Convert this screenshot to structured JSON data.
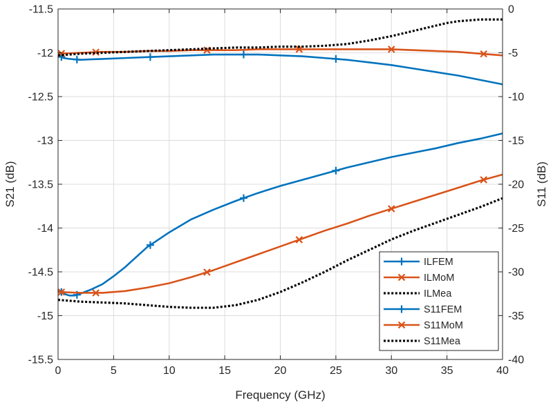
{
  "chart_data": {
    "type": "line",
    "xlabel": "Frequency (GHz)",
    "ylabel_left": "S21 (dB)",
    "ylabel_right": "S11 (dB)",
    "xlim": [
      0,
      40
    ],
    "ylim_left": [
      -15.5,
      -11.5
    ],
    "ylim_right": [
      -40,
      0
    ],
    "xticks": [
      "0",
      "5",
      "10",
      "15",
      "20",
      "25",
      "30",
      "35",
      "40"
    ],
    "yticks_left": [
      "-11.5",
      "-12",
      "-12.5",
      "-13",
      "-13.5",
      "-14",
      "-14.5",
      "-15",
      "-15.5"
    ],
    "yticks_right": [
      "0",
      "-5",
      "-10",
      "-15",
      "-20",
      "-25",
      "-30",
      "-35",
      "-40"
    ],
    "grid": true,
    "legend_position": "bottom-right",
    "colors": {
      "fem": "#0072BD",
      "mom": "#D95319",
      "mea": "#000000"
    },
    "series": [
      {
        "name": "ILFEM",
        "axis": "left",
        "style": "solid",
        "marker": "plus",
        "color": "#0072BD",
        "x": [
          0,
          0.5,
          1,
          2,
          4,
          6,
          8,
          10,
          12,
          14,
          16,
          18,
          20,
          22,
          24,
          26,
          28,
          30,
          32,
          34,
          36,
          38,
          40
        ],
        "y": [
          -12.03,
          -12.06,
          -12.07,
          -12.08,
          -12.07,
          -12.06,
          -12.05,
          -12.04,
          -12.03,
          -12.02,
          -12.02,
          -12.02,
          -12.03,
          -12.04,
          -12.06,
          -12.08,
          -12.11,
          -12.14,
          -12.18,
          -12.22,
          -12.26,
          -12.31,
          -12.36
        ],
        "marker_x": [
          0.3,
          1.7,
          8.3,
          16.7,
          25
        ]
      },
      {
        "name": "ILMoM",
        "axis": "left",
        "style": "solid",
        "marker": "x",
        "color": "#D95319",
        "x": [
          0,
          2,
          4,
          6,
          8,
          10,
          12,
          14,
          16,
          18,
          20,
          22,
          24,
          26,
          28,
          30,
          32,
          34,
          36,
          38,
          40
        ],
        "y": [
          -12.01,
          -12.0,
          -11.99,
          -11.99,
          -11.98,
          -11.98,
          -11.97,
          -11.97,
          -11.97,
          -11.96,
          -11.96,
          -11.96,
          -11.96,
          -11.96,
          -11.96,
          -11.96,
          -11.97,
          -11.98,
          -11.99,
          -12.01,
          -12.03
        ],
        "marker_x": [
          0.3,
          3.4,
          13.4,
          21.7,
          30,
          38.3
        ]
      },
      {
        "name": "ILMea",
        "axis": "left",
        "style": "dotted",
        "marker": "none",
        "color": "#000000",
        "x": [
          0,
          2,
          4,
          6,
          8,
          10,
          12,
          14,
          16,
          18,
          20,
          22,
          24,
          26,
          28,
          30,
          32,
          34,
          35,
          36,
          37,
          38,
          39,
          40
        ],
        "y": [
          -12.03,
          -12.01,
          -12.0,
          -11.99,
          -11.98,
          -11.97,
          -11.96,
          -11.95,
          -11.94,
          -11.94,
          -11.93,
          -11.93,
          -11.92,
          -11.9,
          -11.86,
          -11.81,
          -11.75,
          -11.69,
          -11.66,
          -11.64,
          -11.63,
          -11.62,
          -11.62,
          -11.62
        ]
      },
      {
        "name": "S11FEM",
        "axis": "right",
        "style": "solid",
        "marker": "plus",
        "color": "#0072BD",
        "x": [
          0,
          0.5,
          1,
          1.5,
          2,
          3,
          4,
          5,
          6,
          8,
          10,
          12,
          14,
          16,
          18,
          20,
          22,
          24,
          26,
          28,
          30,
          32,
          34,
          36,
          38,
          40
        ],
        "y": [
          -32.0,
          -32.5,
          -32.7,
          -32.7,
          -32.5,
          -32.0,
          -31.4,
          -30.5,
          -29.5,
          -27.2,
          -25.5,
          -24.0,
          -22.9,
          -21.9,
          -21.0,
          -20.2,
          -19.5,
          -18.8,
          -18.1,
          -17.5,
          -16.9,
          -16.4,
          -15.9,
          -15.3,
          -14.8,
          -14.2
        ],
        "marker_x": [
          0.3,
          1.7,
          8.3,
          16.7,
          25
        ]
      },
      {
        "name": "S11MoM",
        "axis": "right",
        "style": "solid",
        "marker": "x",
        "color": "#D95319",
        "x": [
          0,
          2,
          4,
          6,
          8,
          10,
          12,
          14,
          16,
          18,
          20,
          22,
          24,
          26,
          28,
          30,
          32,
          34,
          36,
          38,
          40
        ],
        "y": [
          -32.3,
          -32.4,
          -32.4,
          -32.2,
          -31.8,
          -31.3,
          -30.6,
          -29.8,
          -28.9,
          -28.0,
          -27.1,
          -26.2,
          -25.3,
          -24.5,
          -23.6,
          -22.8,
          -22.0,
          -21.2,
          -20.4,
          -19.6,
          -18.9
        ],
        "marker_x": [
          0.3,
          3.4,
          13.4,
          21.7,
          30,
          38.3
        ]
      },
      {
        "name": "S11Mea",
        "axis": "right",
        "style": "dotted",
        "marker": "none",
        "color": "#000000",
        "x": [
          0,
          2,
          4,
          6,
          8,
          10,
          12,
          14,
          16,
          18,
          20,
          22,
          24,
          26,
          28,
          30,
          32,
          34,
          36,
          38,
          40
        ],
        "y": [
          -33.2,
          -33.4,
          -33.5,
          -33.6,
          -33.8,
          -34.0,
          -34.1,
          -34.1,
          -33.8,
          -33.2,
          -32.3,
          -31.2,
          -30.0,
          -28.7,
          -27.5,
          -26.3,
          -25.3,
          -24.4,
          -23.5,
          -22.6,
          -21.6
        ]
      }
    ],
    "legend": [
      "ILFEM",
      "ILMoM",
      "ILMea",
      "S11FEM",
      "S11MoM",
      "S11Mea"
    ]
  }
}
